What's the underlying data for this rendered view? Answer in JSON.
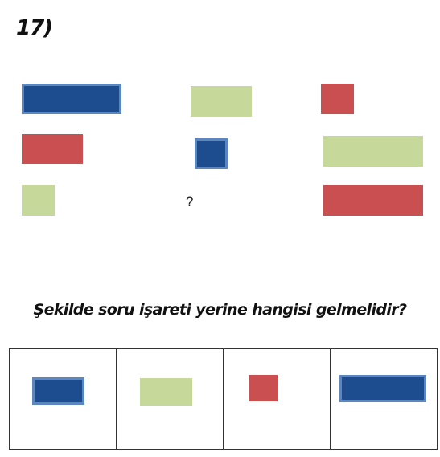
{
  "question_number": "17)",
  "grid": {
    "question_mark": "?"
  },
  "question_text": "Şekilde soru işareti yerine hangisi gelmelidir?",
  "colors": {
    "blue": "#1e4d8f",
    "red": "#c94f51",
    "green": "#c6d99b"
  },
  "options": [
    {
      "color": "blue",
      "shape": "wide-rectangle"
    },
    {
      "color": "green",
      "shape": "wide-rectangle"
    },
    {
      "color": "red",
      "shape": "small-square"
    },
    {
      "color": "blue",
      "shape": "long-rectangle"
    }
  ]
}
